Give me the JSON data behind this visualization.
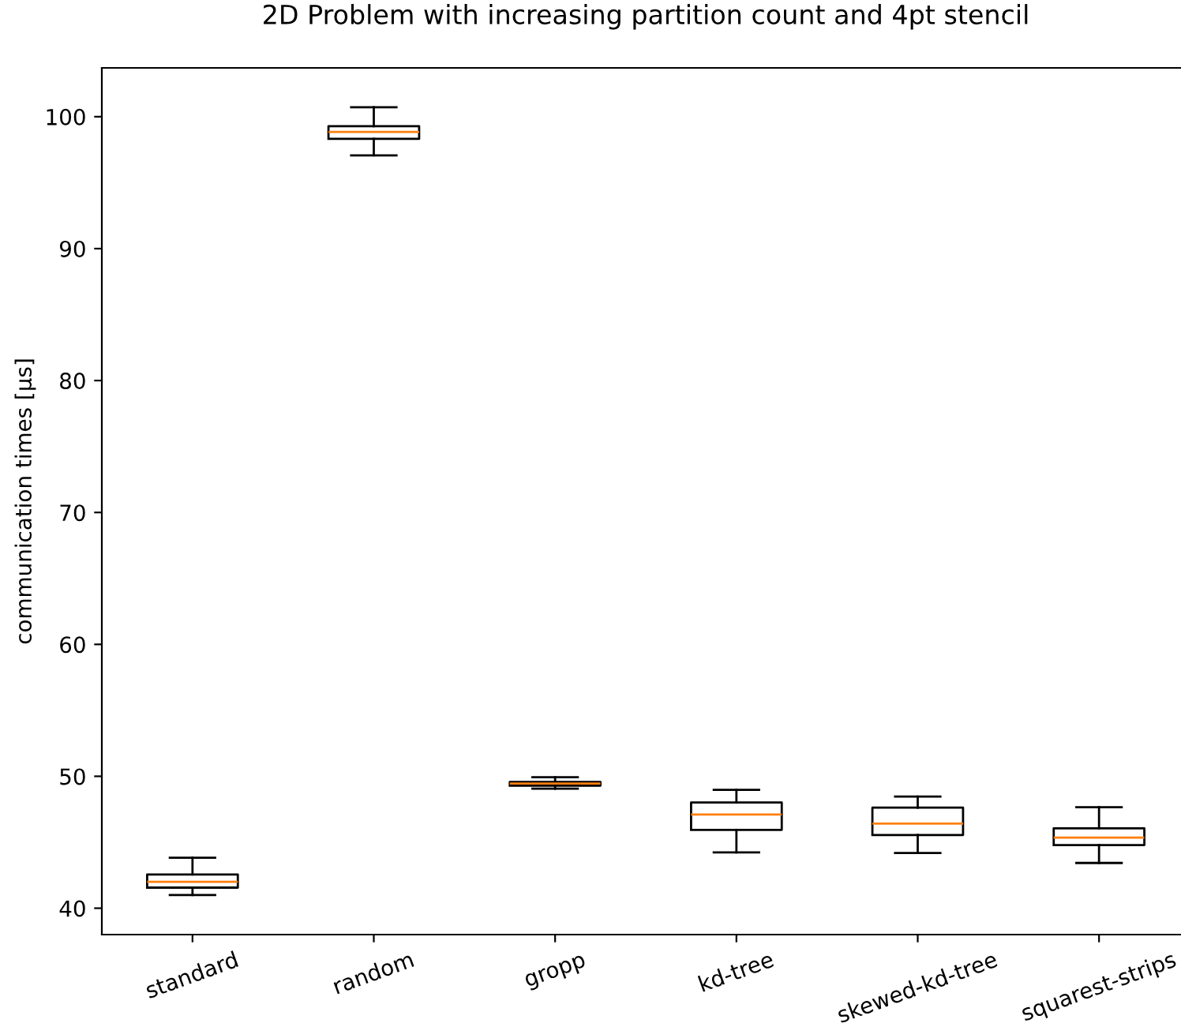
{
  "chart_data": {
    "type": "box",
    "title": "2D Problem with increasing partition count and 4pt stencil",
    "ylabel": "communication times [µs]",
    "categories": [
      "standard",
      "random",
      "gropp",
      "kd-tree",
      "skewed-kd-tree",
      "squarest-strips"
    ],
    "boxes": [
      {
        "low": 41.0,
        "q1": 41.56,
        "median": 42.0,
        "q3": 42.56,
        "high": 43.83
      },
      {
        "low": 97.07,
        "q1": 98.32,
        "median": 98.84,
        "q3": 99.28,
        "high": 100.72
      },
      {
        "low": 49.06,
        "q1": 49.29,
        "median": 49.45,
        "q3": 49.57,
        "high": 49.93
      },
      {
        "low": 44.23,
        "q1": 45.94,
        "median": 47.1,
        "q3": 48.01,
        "high": 48.97
      },
      {
        "low": 44.19,
        "q1": 45.55,
        "median": 46.42,
        "q3": 47.62,
        "high": 48.46
      },
      {
        "low": 43.43,
        "q1": 44.79,
        "median": 45.35,
        "q3": 46.06,
        "high": 47.66
      }
    ],
    "ylim": [
      38.0,
      103.7
    ],
    "yticks": [
      40,
      50,
      60,
      70,
      80,
      90,
      100
    ]
  }
}
